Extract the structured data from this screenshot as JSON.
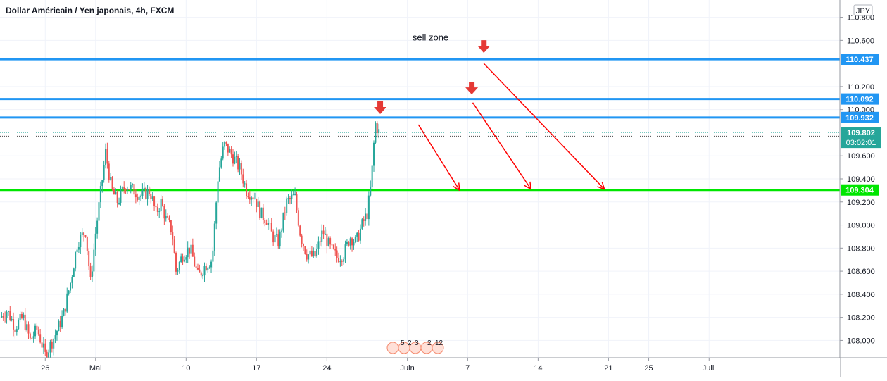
{
  "header": {
    "title": "Dollar Américain / Yen japonais, 4h, FXCM"
  },
  "currency_badge": "JPY",
  "annotation": {
    "sell_zone": "sell zone"
  },
  "events": {
    "icon_names": [
      "economic-event-flag-icon"
    ],
    "counts": [
      "5",
      "2",
      "3",
      "2",
      "12"
    ]
  },
  "colors": {
    "up": "#26a69a",
    "down": "#ef5350",
    "resistance": "#2196f3",
    "support": "#00e600",
    "arrow": "#ff0000",
    "current_tag": "#26a69a",
    "grid": "#f0f3fa"
  },
  "chart_data": {
    "type": "candlestick",
    "symbol": "USDJPY",
    "timeframe": "4h",
    "source": "FXCM",
    "ylim": [
      107.85,
      110.95
    ],
    "y_ticks": [
      108.0,
      108.2,
      108.4,
      108.6,
      108.8,
      109.0,
      109.2,
      109.4,
      109.6,
      110.0,
      110.2,
      110.6,
      110.8
    ],
    "y_tick_labels": [
      "108.000",
      "108.200",
      "108.400",
      "108.600",
      "108.800",
      "109.000",
      "109.200",
      "109.400",
      "109.600",
      "110.000",
      "110.200",
      "110.600",
      "110.800"
    ],
    "x_ticks": [
      {
        "label": "26",
        "day": 0
      },
      {
        "label": "Mai",
        "day": 5
      },
      {
        "label": "10",
        "day": 14
      },
      {
        "label": "17",
        "day": 21
      },
      {
        "label": "24",
        "day": 28
      },
      {
        "label": "Juin",
        "day": 36
      },
      {
        "label": "7",
        "day": 42
      },
      {
        "label": "14",
        "day": 49
      },
      {
        "label": "21",
        "day": 56
      },
      {
        "label": "25",
        "day": 60
      },
      {
        "label": "Juill",
        "day": 66
      }
    ],
    "x_domain": [
      -4.5,
      79
    ],
    "horizontal_levels": [
      {
        "value": 110.437,
        "label": "110.437",
        "kind": "resistance"
      },
      {
        "value": 110.092,
        "label": "110.092",
        "kind": "resistance"
      },
      {
        "value": 109.932,
        "label": "109.932",
        "kind": "resistance"
      },
      {
        "value": 109.304,
        "label": "109.304",
        "kind": "support"
      }
    ],
    "current_price": {
      "value": 109.802,
      "label": "109.802",
      "countdown": "03:02:01"
    },
    "secondary_price_line": 109.77,
    "candle_anchors": [
      [
        -4.5,
        108.2
      ],
      [
        -3.8,
        108.26
      ],
      [
        -3,
        108.12
      ],
      [
        -2.2,
        108.2
      ],
      [
        -1.5,
        108.0
      ],
      [
        -0.8,
        108.1
      ],
      [
        0,
        107.87
      ],
      [
        1,
        108.05
      ],
      [
        1.8,
        108.22
      ],
      [
        2.5,
        108.5
      ],
      [
        3.2,
        108.85
      ],
      [
        4,
        108.95
      ],
      [
        4.5,
        108.5
      ],
      [
        5,
        108.93
      ],
      [
        5.6,
        109.35
      ],
      [
        6,
        109.63
      ],
      [
        6.6,
        109.3
      ],
      [
        7.2,
        109.2
      ],
      [
        8,
        109.35
      ],
      [
        8.8,
        109.3
      ],
      [
        9.5,
        109.25
      ],
      [
        10.4,
        109.3
      ],
      [
        11,
        109.1
      ],
      [
        11.5,
        109.2
      ],
      [
        12,
        109.05
      ],
      [
        12.6,
        108.95
      ],
      [
        13,
        108.6
      ],
      [
        13.7,
        108.75
      ],
      [
        14.4,
        108.8
      ],
      [
        15.2,
        108.55
      ],
      [
        15.9,
        108.65
      ],
      [
        16.6,
        108.7
      ],
      [
        17.2,
        109.45
      ],
      [
        17.8,
        109.7
      ],
      [
        18.6,
        109.6
      ],
      [
        19.4,
        109.48
      ],
      [
        20,
        109.3
      ],
      [
        20.8,
        109.25
      ],
      [
        21.4,
        109.1
      ],
      [
        22,
        109.05
      ],
      [
        22.6,
        108.9
      ],
      [
        23.2,
        108.85
      ],
      [
        24,
        109.2
      ],
      [
        24.8,
        109.25
      ],
      [
        25.4,
        108.9
      ],
      [
        26,
        108.75
      ],
      [
        26.8,
        108.72
      ],
      [
        27.6,
        108.95
      ],
      [
        28.3,
        108.8
      ],
      [
        29,
        108.72
      ],
      [
        29.7,
        108.75
      ],
      [
        30.3,
        108.9
      ],
      [
        30.9,
        108.85
      ],
      [
        31.5,
        109.0
      ],
      [
        32,
        109.1
      ],
      [
        32.4,
        109.35
      ],
      [
        32.8,
        109.88
      ],
      [
        33.3,
        109.78
      ]
    ],
    "projections": [
      {
        "from": {
          "day": 37.1,
          "price": 109.87
        },
        "to": {
          "day": 41.2,
          "price": 109.3
        }
      },
      {
        "from": {
          "day": 42.5,
          "price": 110.06
        },
        "to": {
          "day": 48.3,
          "price": 109.31
        }
      },
      {
        "from": {
          "day": 43.6,
          "price": 110.4
        },
        "to": {
          "day": 55.6,
          "price": 109.31
        }
      }
    ],
    "signal_arrows": [
      {
        "day": 33.3,
        "price": 110.01
      },
      {
        "day": 42.4,
        "price": 110.18
      },
      {
        "day": 43.6,
        "price": 110.54
      }
    ],
    "sell_zone_label": {
      "day": 38.3,
      "price": 110.6
    }
  }
}
